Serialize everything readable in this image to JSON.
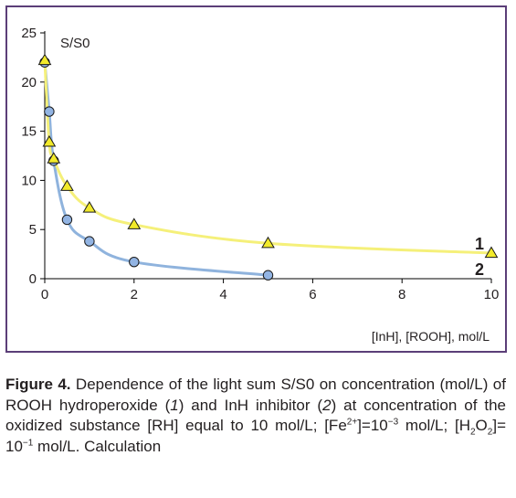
{
  "chart_data": {
    "type": "line",
    "y_axis_title": "S/S0",
    "x_axis_title": "[InH], [ROOH], mol/L",
    "xlim": [
      0,
      10
    ],
    "ylim": [
      0,
      25
    ],
    "x_ticks": [
      "0",
      "2",
      "4",
      "6",
      "8",
      "10"
    ],
    "y_ticks": [
      "0",
      "5",
      "10",
      "15",
      "20",
      "25"
    ],
    "series": [
      {
        "name": "1",
        "marker": "triangle",
        "line_color": "#f5f07a",
        "marker_fill": "#f2ea2a",
        "x": [
          0,
          0.1,
          0.2,
          0.5,
          1,
          2,
          5,
          10
        ],
        "y": [
          22.2,
          13.9,
          12.2,
          9.4,
          7.2,
          5.5,
          3.6,
          2.6
        ]
      },
      {
        "name": "2",
        "marker": "circle",
        "line_color": "#8fb3dd",
        "marker_fill": "#92b4e3",
        "x": [
          0,
          0.1,
          0.2,
          0.5,
          1,
          2,
          5
        ],
        "y": [
          22.0,
          17.0,
          12.0,
          6.0,
          3.8,
          1.7,
          0.35
        ]
      }
    ]
  },
  "caption": {
    "label": "Figure 4.",
    "t1": " Dependence of the light sum S/S0 on concentration (mol/L) of ROOH hydroperoxide (",
    "n1": "1",
    "t2": ") and InH inhibitor (",
    "n2": "2",
    "t3": ") at concentration of the oxidized substance [RH] equal to 10 mol/L; [Fe",
    "sup1": "2+",
    "t4": "]=10",
    "sup2": "−3",
    "t5": " mol/L; [H",
    "sub1": "2",
    "t6": "O",
    "sub2": "2",
    "t7": "]= 10",
    "sup3": "−1",
    "t8": " mol/L. Calculation"
  },
  "colors": {
    "frame": "#5b3e78",
    "axis": "#000000"
  }
}
